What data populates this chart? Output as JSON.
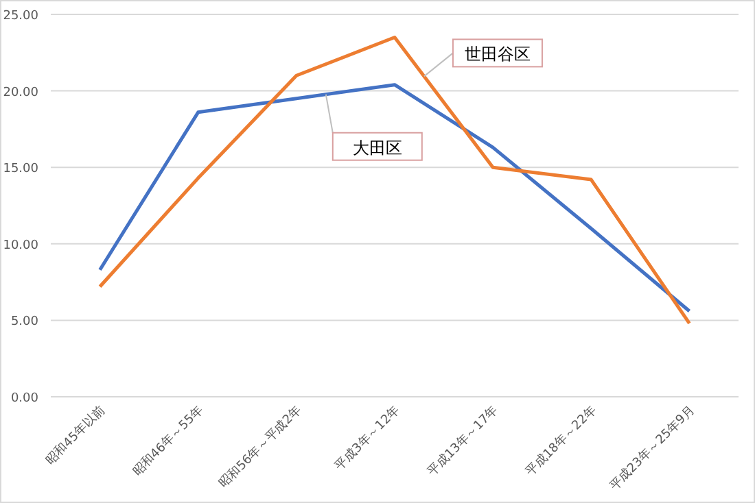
{
  "chart_data": {
    "type": "line",
    "categories": [
      "昭和45年以前",
      "昭和46年～55年",
      "昭和56年～平成2年",
      "平成3年～12年",
      "平成13年～17年",
      "平成18年～22年",
      "平成23年～25年9月"
    ],
    "series": [
      {
        "name": "大田区",
        "color": "#4472c4",
        "values": [
          8.3,
          18.6,
          19.5,
          20.4,
          16.3,
          11.0,
          5.6
        ]
      },
      {
        "name": "世田谷区",
        "color": "#ed7d31",
        "values": [
          7.2,
          14.3,
          21.0,
          23.5,
          15.0,
          14.2,
          4.8
        ]
      }
    ],
    "ylim": [
      0,
      25
    ],
    "yticks": [
      {
        "value": 0,
        "label": "0.00"
      },
      {
        "value": 5,
        "label": "5.00"
      },
      {
        "value": 10,
        "label": "10.00"
      },
      {
        "value": 15,
        "label": "15.00"
      },
      {
        "value": 20,
        "label": "20.00"
      },
      {
        "value": 25,
        "label": "25.00"
      }
    ],
    "grid": "y",
    "marker": "none",
    "line_style": "solid"
  }
}
